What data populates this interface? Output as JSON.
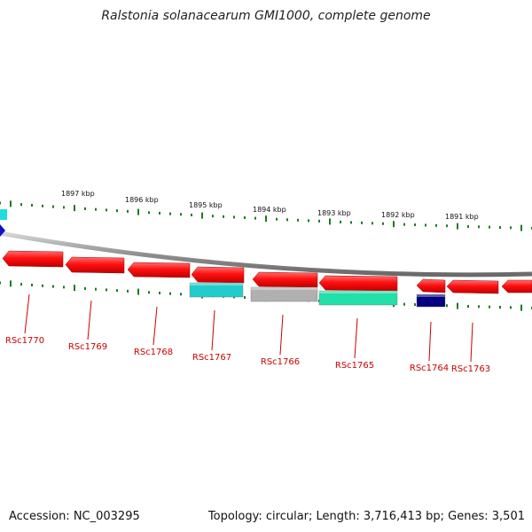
{
  "title": "Ralstonia solanacearum GMI1000, complete genome",
  "footer": {
    "accession": "Accession: NC_003295",
    "summary": "Topology: circular; Length: 3,716,413 bp; Genes: 3,501"
  },
  "ticks": [
    {
      "label": "1897 kbp",
      "pos_kbp": 1897
    },
    {
      "label": "1896 kbp",
      "pos_kbp": 1896
    },
    {
      "label": "1895 kbp",
      "pos_kbp": 1895
    },
    {
      "label": "1894 kbp",
      "pos_kbp": 1894
    },
    {
      "label": "1893 kbp",
      "pos_kbp": 1893
    },
    {
      "label": "1892 kbp",
      "pos_kbp": 1892
    },
    {
      "label": "1891 kbp",
      "pos_kbp": 1891
    }
  ],
  "genes": [
    {
      "name": "RSc1770",
      "color": "#ff2020",
      "strand": "-"
    },
    {
      "name": "RSc1769",
      "color": "#ff2020",
      "strand": "-"
    },
    {
      "name": "RSc1768",
      "color": "#ff2020",
      "strand": "-"
    },
    {
      "name": "RSc1767",
      "color": "#ff2020",
      "strand": "-"
    },
    {
      "name": "RSc1766",
      "color": "#ff2020",
      "strand": "-"
    },
    {
      "name": "RSc1765",
      "color": "#ff2020",
      "strand": "-"
    },
    {
      "name": "RSc1764",
      "color": "#ff2020",
      "strand": "-"
    },
    {
      "name": "RSc1763",
      "color": "#ff2020",
      "strand": "-"
    }
  ],
  "features": [
    {
      "name": "feature-cyan",
      "color": "#22cccc"
    },
    {
      "name": "feature-grey",
      "color": "#b0b0b0"
    },
    {
      "name": "feature-teal",
      "color": "#22e0a8"
    },
    {
      "name": "feature-navy",
      "color": "#000080"
    }
  ],
  "colors": {
    "tick": "#207a20",
    "label": "#cc0000",
    "backbone": "#909090"
  }
}
